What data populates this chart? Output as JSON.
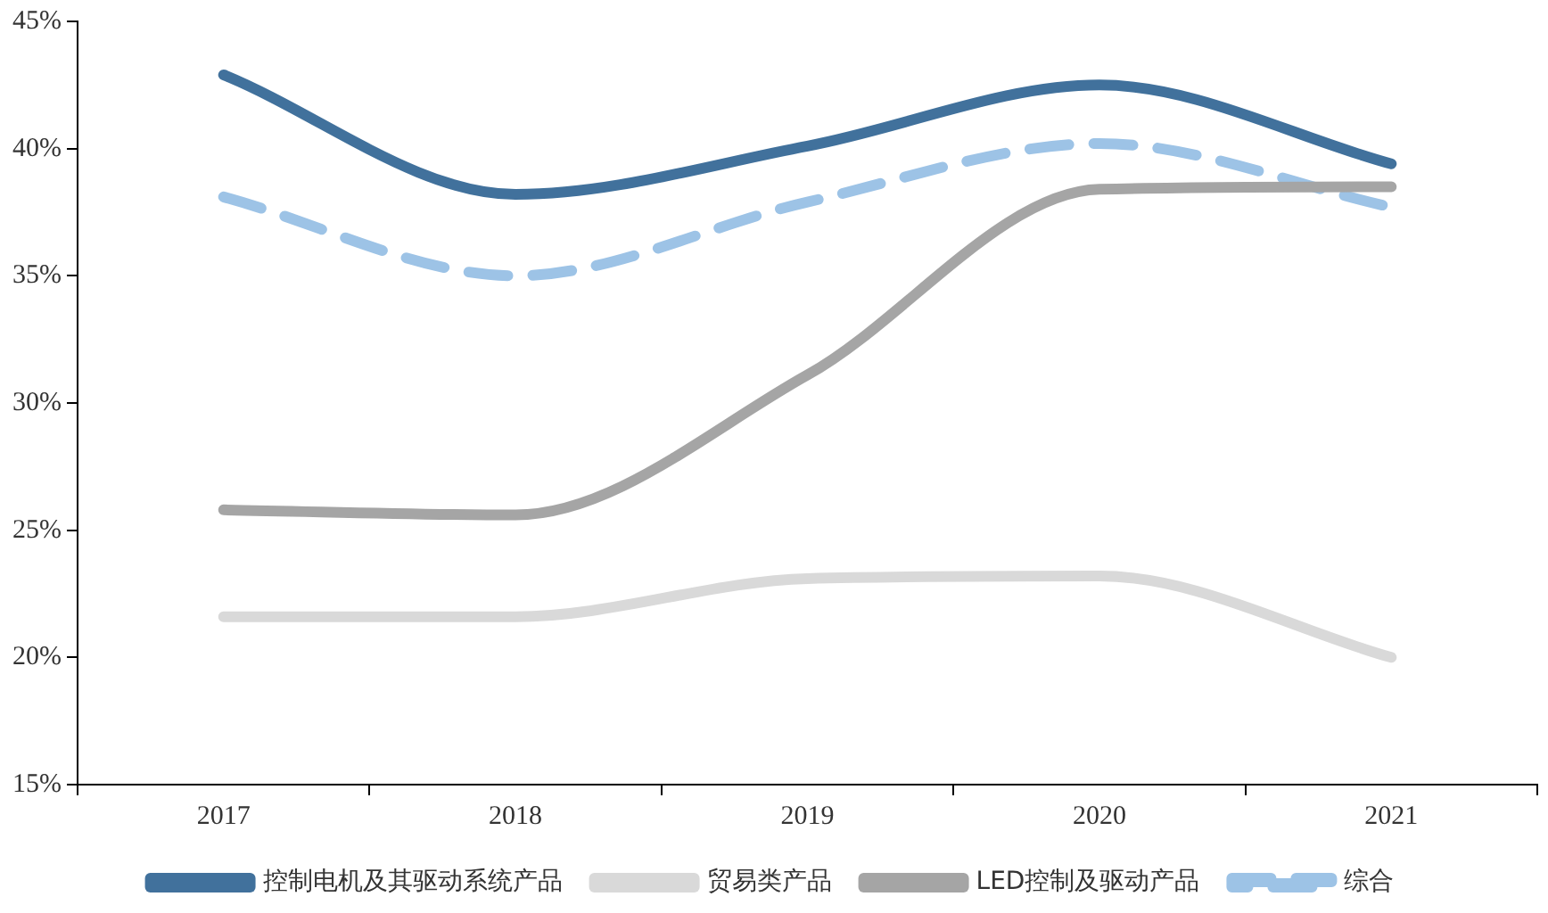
{
  "chart_data": {
    "type": "line",
    "categories": [
      "2017",
      "2018",
      "2019",
      "2020",
      "2021"
    ],
    "series": [
      {
        "name": "控制电机及其驱动系统产品",
        "color": "#41719c",
        "values": [
          42.9,
          38.2,
          40.1,
          42.5,
          39.4
        ]
      },
      {
        "name": "贸易类产品",
        "color": "#d9d9d9",
        "values": [
          21.6,
          21.6,
          23.1,
          23.2,
          20.0
        ]
      },
      {
        "name": "LED控制及驱动产品",
        "color": "#a5a5a5",
        "values": [
          25.8,
          25.6,
          31.1,
          38.4,
          38.5
        ]
      },
      {
        "name": "综合",
        "color": "#9dc3e6",
        "values": [
          38.1,
          35.0,
          37.9,
          40.2,
          37.7
        ],
        "line_style": "dashed"
      }
    ],
    "ylim": [
      15,
      45
    ],
    "yticks": [
      {
        "value": 15,
        "label": "15%"
      },
      {
        "value": 20,
        "label": "20%"
      },
      {
        "value": 25,
        "label": "25%"
      },
      {
        "value": 30,
        "label": "30%"
      },
      {
        "value": 35,
        "label": "35%"
      },
      {
        "value": 40,
        "label": "40%"
      },
      {
        "value": 45,
        "label": "45%"
      }
    ],
    "grid": false,
    "legend": "bottom",
    "marker": "none",
    "line_style": "solid"
  }
}
